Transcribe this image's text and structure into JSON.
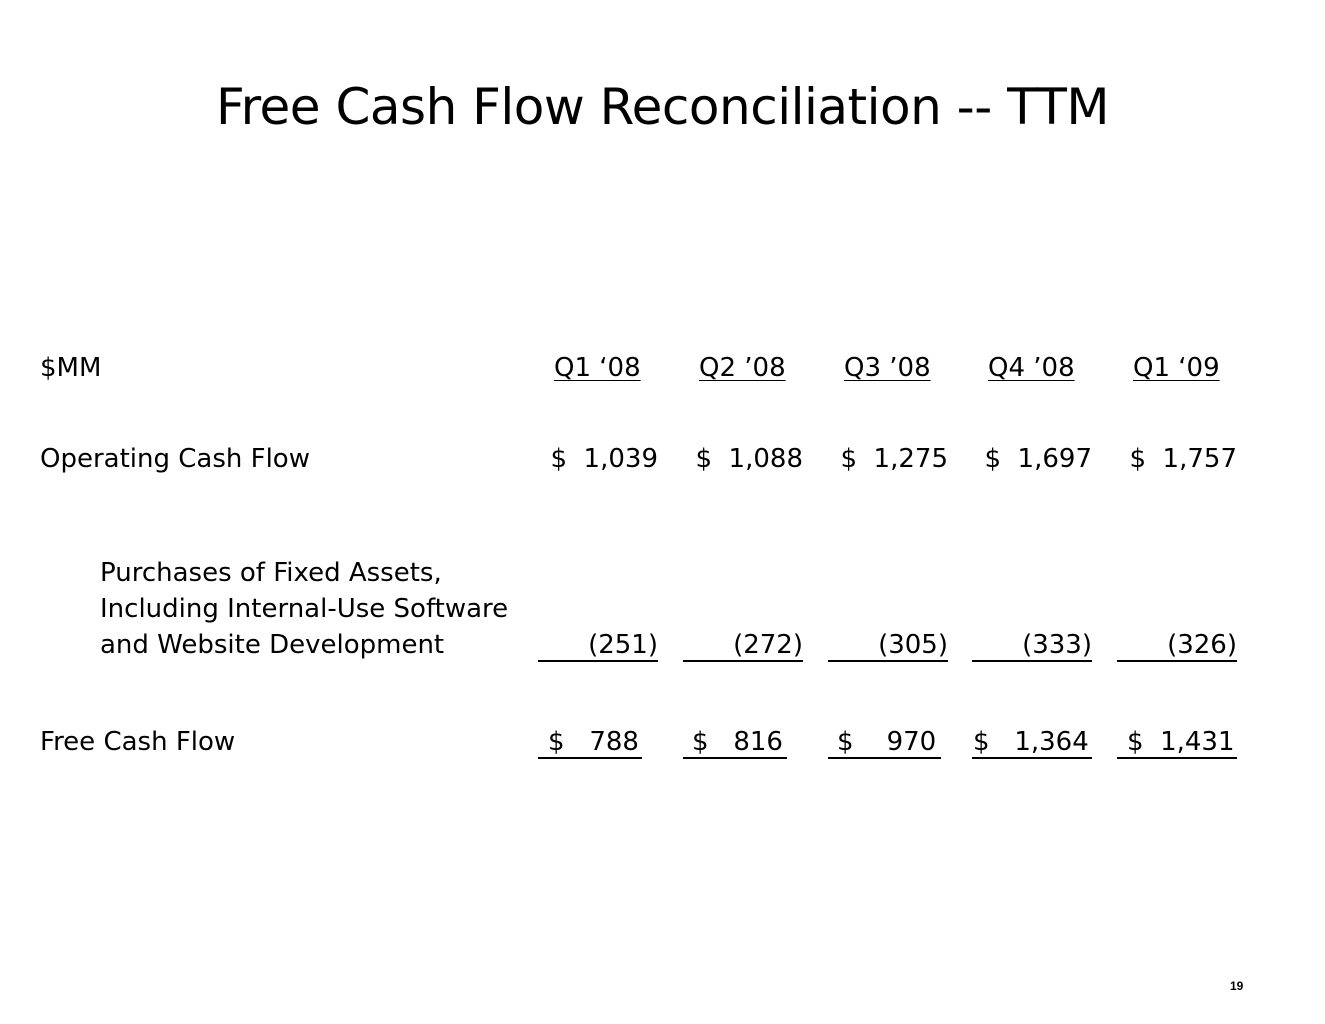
{
  "title": "Free Cash Flow Reconciliation -- TTM",
  "unit_label": "$MM",
  "periods": [
    "Q1 ‘08",
    "Q2 ’08",
    "Q3 ’08",
    "Q4 ’08",
    "Q1 ‘09"
  ],
  "rows": {
    "operating_cash_flow": {
      "label": "Operating Cash Flow",
      "values": [
        "$  1,039",
        "$  1,088",
        "$  1,275",
        "$  1,697",
        "$  1,757"
      ]
    },
    "purchases": {
      "label_lines": [
        "Purchases of Fixed Assets,",
        "Including Internal-Use Software",
        "and Website Development"
      ],
      "values": [
        "(251)",
        "(272)",
        "(305)",
        "(333)",
        "(326)"
      ]
    },
    "free_cash_flow": {
      "label": "Free Cash Flow",
      "values": [
        "$   788",
        "$   816",
        "$    970",
        "$   1,364",
        "$  1,431"
      ]
    }
  },
  "page_number": "19"
}
